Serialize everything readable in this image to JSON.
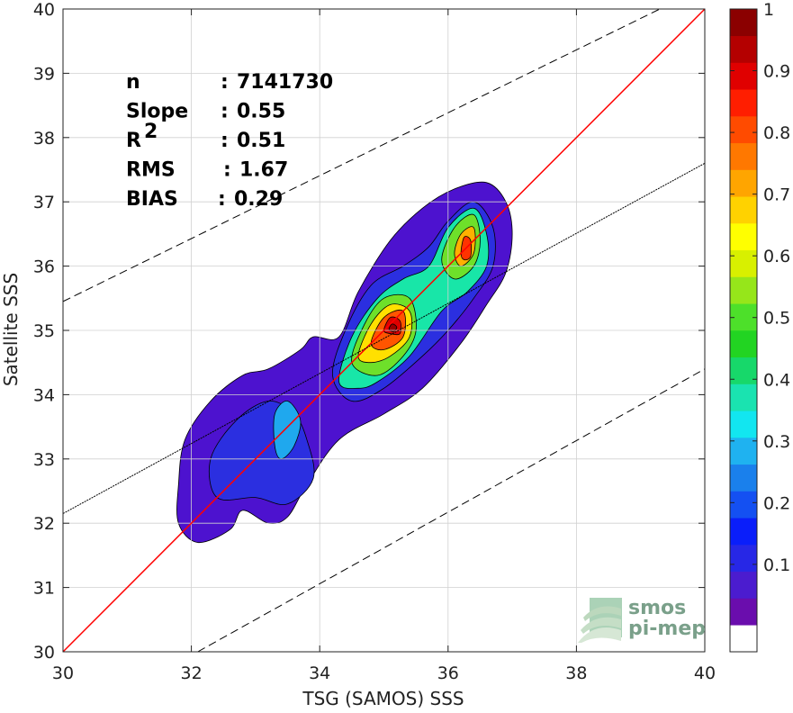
{
  "chart_data": {
    "type": "heatmap",
    "subtype": "density contour scatter",
    "xlabel": "TSG (SAMOS) SSS",
    "ylabel": "Satellite SSS",
    "xlim": [
      30,
      40
    ],
    "ylim": [
      30,
      40
    ],
    "xticks": [
      "30",
      "32",
      "34",
      "36",
      "38",
      "40"
    ],
    "yticks": [
      "30",
      "31",
      "32",
      "33",
      "34",
      "35",
      "36",
      "37",
      "38",
      "39",
      "40"
    ],
    "grid": true,
    "stats": [
      {
        "label": "n",
        "sep": ": ",
        "value": "7141730"
      },
      {
        "label": "Slope",
        "sep": ": ",
        "value": "0.55"
      },
      {
        "label": "R",
        "sup": "2",
        "sep": ": ",
        "value": "0.51"
      },
      {
        "label": "RMS",
        "sep": ": ",
        "value": "1.67"
      },
      {
        "label": "BIAS",
        "sep": ": ",
        "value": "0.29"
      }
    ],
    "reference_lines": [
      {
        "kind": "identity",
        "color": "#ff0000",
        "style": "solid",
        "from": [
          30,
          30
        ],
        "to": [
          40,
          40
        ]
      },
      {
        "kind": "regression",
        "color": "#000000",
        "style": "dotted",
        "from": [
          30,
          32.15
        ],
        "to": [
          40,
          37.6
        ]
      },
      {
        "kind": "upper-bound",
        "color": "#000000",
        "style": "dashed",
        "from": [
          30,
          35.45
        ],
        "to": [
          39.3,
          40
        ]
      },
      {
        "kind": "lower-bound",
        "color": "#000000",
        "style": "dashed",
        "from": [
          32.1,
          30
        ],
        "to": [
          40,
          34.4
        ]
      }
    ],
    "contours": [
      {
        "level": 0.05,
        "color": "#4d12cf",
        "points": [
          [
            31.8,
            32.0
          ],
          [
            31.8,
            32.6
          ],
          [
            31.9,
            33.3
          ],
          [
            32.3,
            33.9
          ],
          [
            32.8,
            34.3
          ],
          [
            33.2,
            34.4
          ],
          [
            33.7,
            34.7
          ],
          [
            33.9,
            34.9
          ],
          [
            34.3,
            34.9
          ],
          [
            34.6,
            35.6
          ],
          [
            35.1,
            36.4
          ],
          [
            35.6,
            36.9
          ],
          [
            36.1,
            37.2
          ],
          [
            36.6,
            37.3
          ],
          [
            36.9,
            37.0
          ],
          [
            37.0,
            36.5
          ],
          [
            36.9,
            35.9
          ],
          [
            36.6,
            35.4
          ],
          [
            36.2,
            34.8
          ],
          [
            35.6,
            34.1
          ],
          [
            35.0,
            33.7
          ],
          [
            34.3,
            33.3
          ],
          [
            33.8,
            32.6
          ],
          [
            33.5,
            32.1
          ],
          [
            33.2,
            32.0
          ],
          [
            32.8,
            32.2
          ],
          [
            32.6,
            31.9
          ],
          [
            32.1,
            31.7
          ]
        ]
      },
      {
        "level": 0.1,
        "color": "#2b2fe0",
        "points": [
          [
            32.4,
            32.4
          ],
          [
            32.3,
            33.0
          ],
          [
            32.7,
            33.6
          ],
          [
            33.2,
            33.9
          ],
          [
            33.6,
            33.7
          ],
          [
            33.8,
            33.3
          ],
          [
            33.9,
            32.7
          ],
          [
            33.5,
            32.3
          ],
          [
            33.0,
            32.4
          ]
        ]
      },
      {
        "level": 0.1,
        "color": "#2b2fe0",
        "points": [
          [
            34.2,
            34.3
          ],
          [
            34.4,
            35.0
          ],
          [
            34.8,
            35.7
          ],
          [
            35.3,
            36.0
          ],
          [
            35.7,
            36.3
          ],
          [
            36.0,
            36.7
          ],
          [
            36.4,
            37.0
          ],
          [
            36.7,
            36.6
          ],
          [
            36.7,
            36.0
          ],
          [
            36.4,
            35.5
          ],
          [
            36.0,
            35.0
          ],
          [
            35.6,
            34.6
          ],
          [
            35.0,
            34.1
          ],
          [
            34.5,
            33.9
          ]
        ]
      },
      {
        "level": 0.3,
        "color": "#1fa8ee",
        "points": [
          [
            33.3,
            33.2
          ],
          [
            33.3,
            33.7
          ],
          [
            33.5,
            33.9
          ],
          [
            33.7,
            33.6
          ],
          [
            33.6,
            33.2
          ],
          [
            33.4,
            33.0
          ]
        ]
      },
      {
        "level": 0.3,
        "color": "#18e6a8",
        "points": [
          [
            34.3,
            34.2
          ],
          [
            34.5,
            34.9
          ],
          [
            34.9,
            35.5
          ],
          [
            35.3,
            35.8
          ],
          [
            35.7,
            36.0
          ],
          [
            36.0,
            36.6
          ],
          [
            36.4,
            36.9
          ],
          [
            36.6,
            36.5
          ],
          [
            36.6,
            36.0
          ],
          [
            36.3,
            35.6
          ],
          [
            35.9,
            35.3
          ],
          [
            35.4,
            34.6
          ],
          [
            34.9,
            34.2
          ],
          [
            34.6,
            34.1
          ]
        ]
      },
      {
        "level": 0.5,
        "color": "#6ee02a",
        "points": [
          [
            34.5,
            34.5
          ],
          [
            34.7,
            35.1
          ],
          [
            35.0,
            35.5
          ],
          [
            35.4,
            35.5
          ],
          [
            35.5,
            35.0
          ],
          [
            35.3,
            34.6
          ],
          [
            34.9,
            34.3
          ]
        ]
      },
      {
        "level": 0.5,
        "color": "#6ee02a",
        "points": [
          [
            35.9,
            36.1
          ],
          [
            36.1,
            36.6
          ],
          [
            36.4,
            36.8
          ],
          [
            36.5,
            36.4
          ],
          [
            36.4,
            36.0
          ],
          [
            36.1,
            35.8
          ]
        ]
      },
      {
        "level": 0.65,
        "color": "#ffe000",
        "points": [
          [
            34.6,
            34.6
          ],
          [
            34.8,
            35.1
          ],
          [
            35.1,
            35.4
          ],
          [
            35.4,
            35.3
          ],
          [
            35.4,
            34.9
          ],
          [
            35.1,
            34.6
          ],
          [
            34.8,
            34.5
          ]
        ]
      },
      {
        "level": 0.65,
        "color": "#ffb000",
        "points": [
          [
            36.1,
            36.2
          ],
          [
            36.2,
            36.5
          ],
          [
            36.4,
            36.6
          ],
          [
            36.4,
            36.2
          ],
          [
            36.2,
            36.0
          ]
        ]
      },
      {
        "level": 0.8,
        "color": "#ff5500",
        "points": [
          [
            34.8,
            34.8
          ],
          [
            35.0,
            35.2
          ],
          [
            35.3,
            35.3
          ],
          [
            35.3,
            34.9
          ],
          [
            35.0,
            34.7
          ]
        ]
      },
      {
        "level": 0.8,
        "color": "#ff3300",
        "points": [
          [
            36.2,
            36.2
          ],
          [
            36.25,
            36.45
          ],
          [
            36.35,
            36.4
          ],
          [
            36.35,
            36.15
          ],
          [
            36.25,
            36.1
          ]
        ]
      },
      {
        "level": 0.9,
        "color": "#dd0000",
        "points": [
          [
            35.0,
            35.0
          ],
          [
            35.1,
            35.2
          ],
          [
            35.25,
            35.15
          ],
          [
            35.25,
            34.95
          ],
          [
            35.1,
            34.95
          ]
        ]
      },
      {
        "level": 1.0,
        "color": "#990000",
        "points": [
          [
            35.08,
            35.02
          ],
          [
            35.13,
            35.1
          ],
          [
            35.2,
            35.05
          ],
          [
            35.15,
            34.98
          ]
        ]
      }
    ],
    "colorbar": {
      "ticks": [
        "0.1",
        "0.2",
        "0.3",
        "0.4",
        "0.5",
        "0.6",
        "0.7",
        "0.8",
        "0.9",
        "1"
      ],
      "colors": [
        "#ffffff",
        "#6a0dad",
        "#4b1ccf",
        "#2727e6",
        "#0a1efa",
        "#1450f2",
        "#1a80ec",
        "#1fb2f0",
        "#12e6f0",
        "#1ae3b0",
        "#17d86a",
        "#22d422",
        "#4de02a",
        "#96e61a",
        "#d8f000",
        "#ffff00",
        "#ffd200",
        "#ffa500",
        "#ff7800",
        "#ff4b00",
        "#ff1e00",
        "#e00000",
        "#b40000",
        "#8b0000"
      ]
    }
  },
  "logo": {
    "line1": "smos",
    "line2": "pi-mep"
  }
}
